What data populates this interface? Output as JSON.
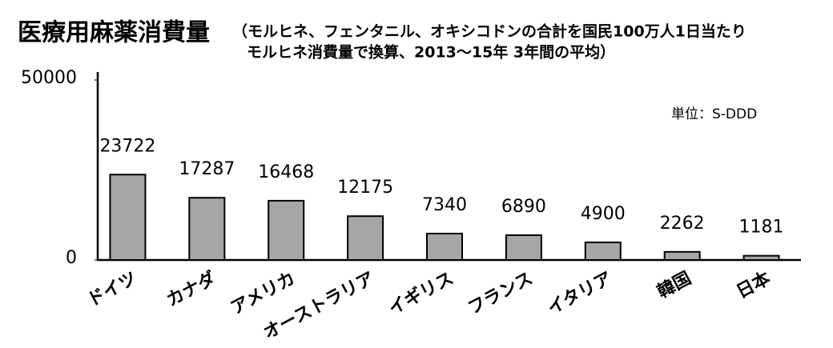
{
  "chart_data": {
    "type": "bar",
    "title": "医療用麻薬消費量",
    "subtitle": [
      "（モルヒネ、フェンタニル、オキシコドンの合計を国民100万人1日当たり",
      "モルヒネ消費量で換算、2013～15年 3年間の平均）"
    ],
    "unit": "単位：S-DDD",
    "categories": [
      "ドイツ",
      "カナダ",
      "アメリカ",
      "オーストラリア",
      "イギリス",
      "フランス",
      "イタリア",
      "韓国",
      "日本"
    ],
    "values": [
      23722,
      17287,
      16468,
      12175,
      7340,
      6890,
      4900,
      2262,
      1181
    ],
    "color": "#a6a6a6",
    "ylim": [
      0,
      50000
    ],
    "yticks": [
      0,
      50000
    ],
    "grid": false
  }
}
